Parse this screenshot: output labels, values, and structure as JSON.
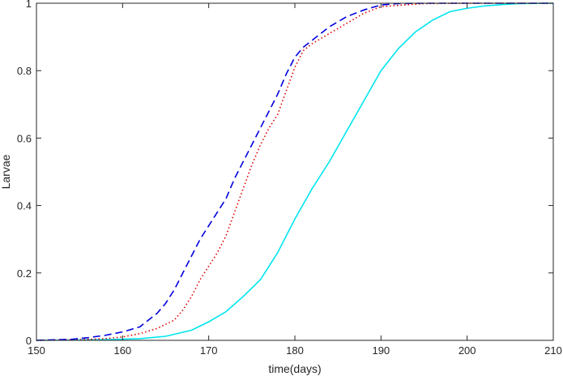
{
  "chart_data": {
    "type": "line",
    "title": "",
    "xlabel": "time(days)",
    "ylabel": "Larvae",
    "xlim": [
      150,
      210
    ],
    "ylim": [
      0,
      1
    ],
    "xticks": [
      150,
      160,
      170,
      180,
      190,
      200,
      210
    ],
    "yticks": [
      0,
      0.2,
      0.4,
      0.6,
      0.8,
      1
    ],
    "ytick_labels": [
      "0",
      "0.2",
      "0.4",
      "0.6",
      "0.8",
      "1"
    ],
    "grid": false,
    "legend": "none",
    "series": [
      {
        "color": "#00e5ee",
        "style": "solid",
        "x": [
          150,
          158,
          162,
          165,
          168,
          170,
          172,
          174,
          176,
          178,
          180,
          182,
          184,
          186,
          188,
          190,
          192,
          194,
          196,
          198,
          200,
          202,
          204,
          206,
          210
        ],
        "y": [
          0,
          0.002,
          0.005,
          0.012,
          0.03,
          0.055,
          0.085,
          0.13,
          0.18,
          0.26,
          0.36,
          0.45,
          0.53,
          0.62,
          0.71,
          0.8,
          0.865,
          0.915,
          0.95,
          0.975,
          0.985,
          0.992,
          0.996,
          0.999,
          1.0
        ]
      },
      {
        "color": "#dd0000",
        "style": "dotted",
        "x": [
          150,
          155,
          158,
          160,
          162,
          164,
          166,
          167,
          168,
          169,
          170,
          171,
          172,
          173,
          174,
          175,
          176,
          177,
          178,
          179,
          180,
          181,
          182,
          184,
          186,
          188,
          190,
          195,
          200,
          210
        ],
        "y": [
          0,
          0.002,
          0.005,
          0.01,
          0.02,
          0.035,
          0.06,
          0.09,
          0.13,
          0.18,
          0.22,
          0.26,
          0.31,
          0.38,
          0.45,
          0.52,
          0.58,
          0.63,
          0.67,
          0.74,
          0.81,
          0.86,
          0.88,
          0.91,
          0.94,
          0.97,
          0.99,
          0.999,
          1.0,
          1.0
        ]
      },
      {
        "color": "#0000dd",
        "style": "dashed",
        "x": [
          150,
          154,
          156,
          158,
          160,
          162,
          163,
          164,
          165,
          166,
          167,
          168,
          169,
          170,
          171,
          172,
          173,
          174,
          175,
          176,
          177,
          178,
          179,
          180,
          181,
          182,
          184,
          186,
          188,
          190,
          192,
          195,
          200,
          210
        ],
        "y": [
          0,
          0.003,
          0.008,
          0.015,
          0.025,
          0.04,
          0.06,
          0.08,
          0.11,
          0.15,
          0.2,
          0.25,
          0.3,
          0.34,
          0.38,
          0.42,
          0.48,
          0.53,
          0.58,
          0.63,
          0.68,
          0.73,
          0.79,
          0.84,
          0.87,
          0.89,
          0.93,
          0.96,
          0.98,
          0.995,
          0.999,
          1.0,
          1.0,
          1.0
        ]
      }
    ]
  }
}
